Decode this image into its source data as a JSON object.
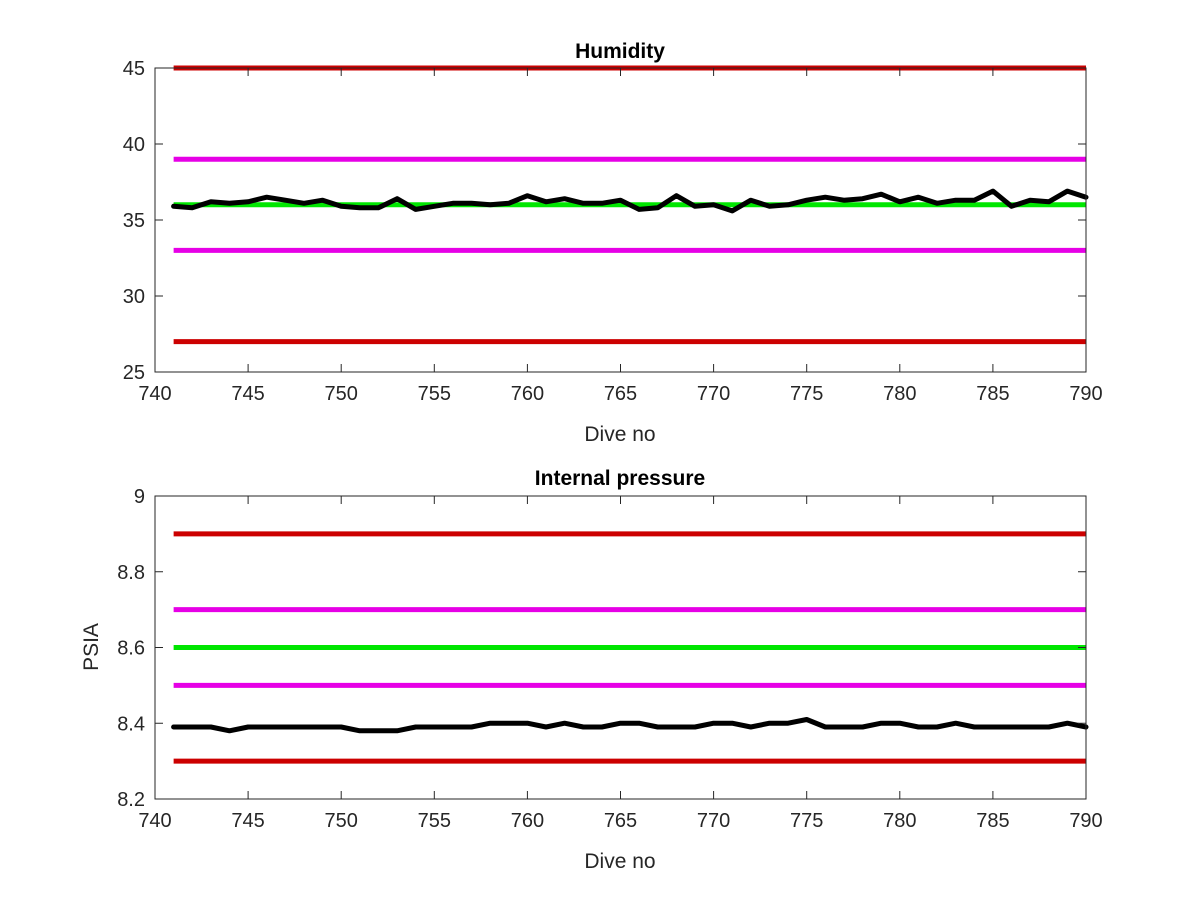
{
  "chart_data": [
    {
      "type": "line",
      "title": "Humidity",
      "xlabel": "Dive no",
      "ylabel": "",
      "xlim": [
        740,
        790
      ],
      "ylim": [
        25,
        45
      ],
      "xticks": [
        740,
        745,
        750,
        755,
        760,
        765,
        770,
        775,
        780,
        785,
        790
      ],
      "xtick_labels": [
        "740",
        "745",
        "750",
        "755",
        "760",
        "765",
        "770",
        "775",
        "780",
        "785",
        "790"
      ],
      "yticks": [
        25,
        30,
        35,
        40,
        45
      ],
      "ytick_labels": [
        "25",
        "30",
        "35",
        "40",
        "45"
      ],
      "grid": false,
      "hlines": [
        {
          "y": 45,
          "x": [
            741,
            790
          ],
          "color": "#cc0000"
        },
        {
          "y": 39,
          "x": [
            741,
            790
          ],
          "color": "#e600e6"
        },
        {
          "y": 36,
          "x": [
            741,
            790
          ],
          "color": "#00e600"
        },
        {
          "y": 33,
          "x": [
            741,
            790
          ],
          "color": "#e600e6"
        },
        {
          "y": 27,
          "x": [
            741,
            790
          ],
          "color": "#cc0000"
        }
      ],
      "series": [
        {
          "color": "#000000",
          "x": [
            741,
            742,
            743,
            744,
            745,
            746,
            747,
            748,
            749,
            750,
            751,
            752,
            753,
            754,
            755,
            756,
            757,
            758,
            759,
            760,
            761,
            762,
            763,
            764,
            765,
            766,
            767,
            768,
            769,
            770,
            771,
            772,
            773,
            774,
            775,
            776,
            777,
            778,
            779,
            780,
            781,
            782,
            783,
            784,
            785,
            786,
            787,
            788,
            789,
            790
          ],
          "y": [
            35.9,
            35.8,
            36.2,
            36.1,
            36.2,
            36.5,
            36.3,
            36.1,
            36.3,
            35.9,
            35.8,
            35.8,
            36.4,
            35.7,
            35.9,
            36.1,
            36.1,
            36.0,
            36.1,
            36.6,
            36.2,
            36.4,
            36.1,
            36.1,
            36.3,
            35.7,
            35.8,
            36.6,
            35.9,
            36.0,
            35.6,
            36.3,
            35.9,
            36.0,
            36.3,
            36.5,
            36.3,
            36.4,
            36.7,
            36.2,
            36.5,
            36.1,
            36.3,
            36.3,
            36.9,
            35.9,
            36.3,
            36.2,
            36.9,
            36.5
          ]
        }
      ]
    },
    {
      "type": "line",
      "title": "Internal pressure",
      "xlabel": "Dive no",
      "ylabel": "PSIA",
      "xlim": [
        740,
        790
      ],
      "ylim": [
        8.2,
        9.0
      ],
      "xticks": [
        740,
        745,
        750,
        755,
        760,
        765,
        770,
        775,
        780,
        785,
        790
      ],
      "xtick_labels": [
        "740",
        "745",
        "750",
        "755",
        "760",
        "765",
        "770",
        "775",
        "780",
        "785",
        "790"
      ],
      "yticks": [
        8.2,
        8.4,
        8.6,
        8.8,
        9.0
      ],
      "ytick_labels": [
        "8.2",
        "8.4",
        "8.6",
        "8.8",
        "9"
      ],
      "grid": false,
      "hlines": [
        {
          "y": 8.9,
          "x": [
            741,
            790
          ],
          "color": "#cc0000"
        },
        {
          "y": 8.7,
          "x": [
            741,
            790
          ],
          "color": "#e600e6"
        },
        {
          "y": 8.6,
          "x": [
            741,
            790
          ],
          "color": "#00e600"
        },
        {
          "y": 8.5,
          "x": [
            741,
            790
          ],
          "color": "#e600e6"
        },
        {
          "y": 8.3,
          "x": [
            741,
            790
          ],
          "color": "#cc0000"
        }
      ],
      "series": [
        {
          "color": "#000000",
          "x": [
            741,
            742,
            743,
            744,
            745,
            746,
            747,
            748,
            749,
            750,
            751,
            752,
            753,
            754,
            755,
            756,
            757,
            758,
            759,
            760,
            761,
            762,
            763,
            764,
            765,
            766,
            767,
            768,
            769,
            770,
            771,
            772,
            773,
            774,
            775,
            776,
            777,
            778,
            779,
            780,
            781,
            782,
            783,
            784,
            785,
            786,
            787,
            788,
            789,
            790
          ],
          "y": [
            8.39,
            8.39,
            8.39,
            8.38,
            8.39,
            8.39,
            8.39,
            8.39,
            8.39,
            8.39,
            8.38,
            8.38,
            8.38,
            8.39,
            8.39,
            8.39,
            8.39,
            8.4,
            8.4,
            8.4,
            8.39,
            8.4,
            8.39,
            8.39,
            8.4,
            8.4,
            8.39,
            8.39,
            8.39,
            8.4,
            8.4,
            8.39,
            8.4,
            8.4,
            8.41,
            8.39,
            8.39,
            8.39,
            8.4,
            8.4,
            8.39,
            8.39,
            8.4,
            8.39,
            8.39,
            8.39,
            8.39,
            8.39,
            8.4,
            8.39
          ]
        }
      ]
    }
  ]
}
